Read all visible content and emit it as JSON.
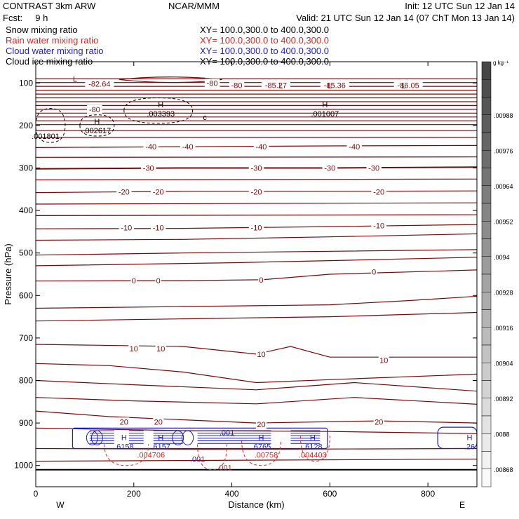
{
  "header": {
    "left_title": "CONTRAST  3km ARW",
    "center_title": "NCAR/MMM",
    "init": "Init: 12 UTC Sun 12 Jan 14",
    "fcst": "Fcst:     9 h",
    "valid": "Valid: 21 UTC Sun 12 Jan 14 (07 ChT Mon 13 Jan 14)",
    "fields": [
      {
        "name": "Snow mixing ratio",
        "xy": "XY= 100.0,300.0 to 400.0,300.0",
        "color": "#000000"
      },
      {
        "name": "Rain water mixing ratio",
        "xy": "XY= 100.0,300.0 to 400.0,300.0",
        "color": "#e0231e"
      },
      {
        "name": "Cloud water mixing ratio",
        "xy": "XY= 100.0,300.0 to 400.0,300.0",
        "color": "#1f1fbf"
      },
      {
        "name": "Cloud ice mixing ratio",
        "xy": "XY= 100.0,300.0 to 400.0,300.0",
        "color": "#000000"
      }
    ]
  },
  "colors": {
    "temperature": "#7a0a0a",
    "rain": "#e0231e",
    "cloud_water": "#1f1fbf",
    "snow": "#000000"
  },
  "chart_data": {
    "type": "contour",
    "xlabel": "Distance (km)",
    "ylabel": "Pressure (hPa)",
    "xlim": [
      0,
      900
    ],
    "ylim": [
      1050,
      50
    ],
    "x_ticks": [
      0,
      200,
      400,
      600,
      800
    ],
    "y_ticks": [
      100,
      200,
      300,
      400,
      500,
      600,
      700,
      800,
      900,
      1000
    ],
    "direction_labels": {
      "west": "W",
      "east": "E"
    },
    "colorbar": {
      "unit": "g kg⁻¹",
      "tick_labels": [
        ".00988",
        ".00976",
        ".00964",
        ".00952",
        ".0094",
        ".00928",
        ".00916",
        ".00904",
        ".00892",
        ".0088",
        ".00868"
      ]
    },
    "temperature_labels": [
      {
        "x": 120,
        "p": 162,
        "text": "-80"
      },
      {
        "x": 130,
        "p": 102,
        "text": "-82.64"
      },
      {
        "x": 360,
        "p": 100,
        "text": "-80"
      },
      {
        "x": 410,
        "p": 105,
        "text": "-80"
      },
      {
        "x": 490,
        "p": 105,
        "text": "-85.27"
      },
      {
        "x": 610,
        "p": 105,
        "text": "-85.36"
      },
      {
        "x": 760,
        "p": 105,
        "text": "-86.05"
      },
      {
        "x": 235,
        "p": 250,
        "text": "-40"
      },
      {
        "x": 310,
        "p": 250,
        "text": "-40"
      },
      {
        "x": 460,
        "p": 250,
        "text": "-40"
      },
      {
        "x": 650,
        "p": 250,
        "text": "-40"
      },
      {
        "x": 230,
        "p": 300,
        "text": "-30"
      },
      {
        "x": 450,
        "p": 300,
        "text": "-30"
      },
      {
        "x": 600,
        "p": 300,
        "text": "-30"
      },
      {
        "x": 690,
        "p": 300,
        "text": "-30"
      },
      {
        "x": 180,
        "p": 356,
        "text": "-20"
      },
      {
        "x": 250,
        "p": 356,
        "text": "-20"
      },
      {
        "x": 450,
        "p": 356,
        "text": "-20"
      },
      {
        "x": 700,
        "p": 356,
        "text": "-20"
      },
      {
        "x": 185,
        "p": 440,
        "text": "-10"
      },
      {
        "x": 250,
        "p": 440,
        "text": "-10"
      },
      {
        "x": 450,
        "p": 440,
        "text": "-10"
      },
      {
        "x": 700,
        "p": 435,
        "text": "-10"
      },
      {
        "x": 200,
        "p": 565,
        "text": "0"
      },
      {
        "x": 250,
        "p": 565,
        "text": "0"
      },
      {
        "x": 460,
        "p": 563,
        "text": "0"
      },
      {
        "x": 690,
        "p": 544,
        "text": "0"
      },
      {
        "x": 200,
        "p": 725,
        "text": "10"
      },
      {
        "x": 255,
        "p": 725,
        "text": "10"
      },
      {
        "x": 460,
        "p": 738,
        "text": "10"
      },
      {
        "x": 710,
        "p": 752,
        "text": "10"
      },
      {
        "x": 180,
        "p": 897,
        "text": "20"
      },
      {
        "x": 250,
        "p": 897,
        "text": "20"
      },
      {
        "x": 460,
        "p": 903,
        "text": "20"
      },
      {
        "x": 700,
        "p": 897,
        "text": "20"
      }
    ],
    "extrema": [
      {
        "x": 80,
        "p": 102,
        "type": "L",
        "field": "temperature",
        "value": ""
      },
      {
        "x": 500,
        "p": 118,
        "type": "L",
        "field": "temperature",
        "value": ""
      },
      {
        "x": 600,
        "p": 118,
        "type": "L",
        "field": "temperature",
        "value": ""
      },
      {
        "x": 750,
        "p": 118,
        "type": "L",
        "field": "temperature",
        "value": ""
      },
      {
        "x": 255,
        "p": 162,
        "type": "H",
        "field": "snow",
        "value": ".003393"
      },
      {
        "x": 590,
        "p": 162,
        "type": "H",
        "field": "snow",
        "value": ".001007"
      },
      {
        "x": 125,
        "p": 202,
        "type": "H",
        "field": "snow",
        "value": ".002617"
      },
      {
        "x": 20,
        "p": 225,
        "type": "",
        "field": "snow",
        "value": ".001801"
      },
      {
        "x": 180,
        "p": 945,
        "type": "H",
        "field": "cloud_water",
        "value": ".6158"
      },
      {
        "x": 255,
        "p": 945,
        "type": "H",
        "field": "cloud_water",
        "value": ".6157"
      },
      {
        "x": 460,
        "p": 945,
        "type": "H",
        "field": "cloud_water",
        "value": ".6765"
      },
      {
        "x": 565,
        "p": 945,
        "type": "H",
        "field": "cloud_water",
        "value": ".6128"
      },
      {
        "x": 885,
        "p": 945,
        "type": "H",
        "field": "cloud_water",
        "value": ".26"
      },
      {
        "x": 235,
        "p": 975,
        "type": "",
        "field": "rain",
        "value": ".004706"
      },
      {
        "x": 470,
        "p": 975,
        "type": "",
        "field": "rain",
        "value": ".00758"
      },
      {
        "x": 565,
        "p": 975,
        "type": "",
        "field": "rain",
        "value": ".004403"
      },
      {
        "x": 385,
        "p": 1005,
        "type": "",
        "field": "rain",
        "value": ".001"
      }
    ],
    "contour_small_labels": [
      {
        "x": 390,
        "p": 922,
        "text": ".001",
        "field": "cloud_water"
      },
      {
        "x": 330,
        "p": 985,
        "text": ".001",
        "field": "cloud_water"
      },
      {
        "x": 345,
        "p": 180,
        "text": "c",
        "field": "snow"
      }
    ]
  }
}
